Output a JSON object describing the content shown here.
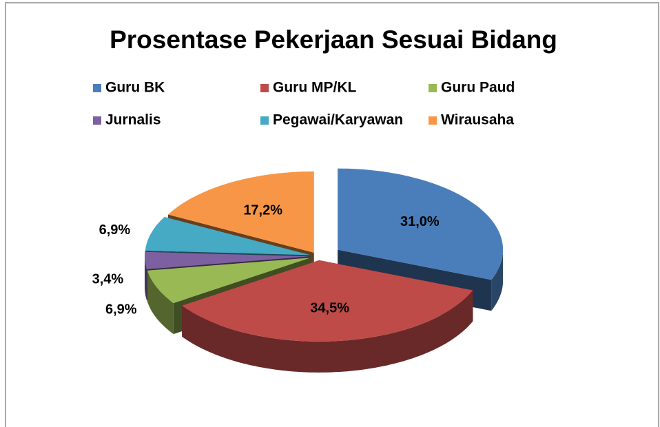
{
  "chart_data": {
    "type": "pie3d",
    "title": "Prosentase Pekerjaan Sesuai Bidang",
    "categories": [
      "Guru BK",
      "Guru MP/KL",
      "Guru Paud",
      "Jurnalis",
      "Pegawai/Karyawan",
      "Wirausaha"
    ],
    "values": [
      31.0,
      34.5,
      6.9,
      3.4,
      6.9,
      17.2
    ],
    "value_labels": [
      "31,0%",
      "34,5%",
      "6,9%",
      "3,4%",
      "6,9%",
      "17,2%"
    ],
    "colors": [
      "#4a7ebb",
      "#be4b48",
      "#98b954",
      "#7d60a0",
      "#46aac5",
      "#f79646"
    ],
    "legend": "top"
  }
}
